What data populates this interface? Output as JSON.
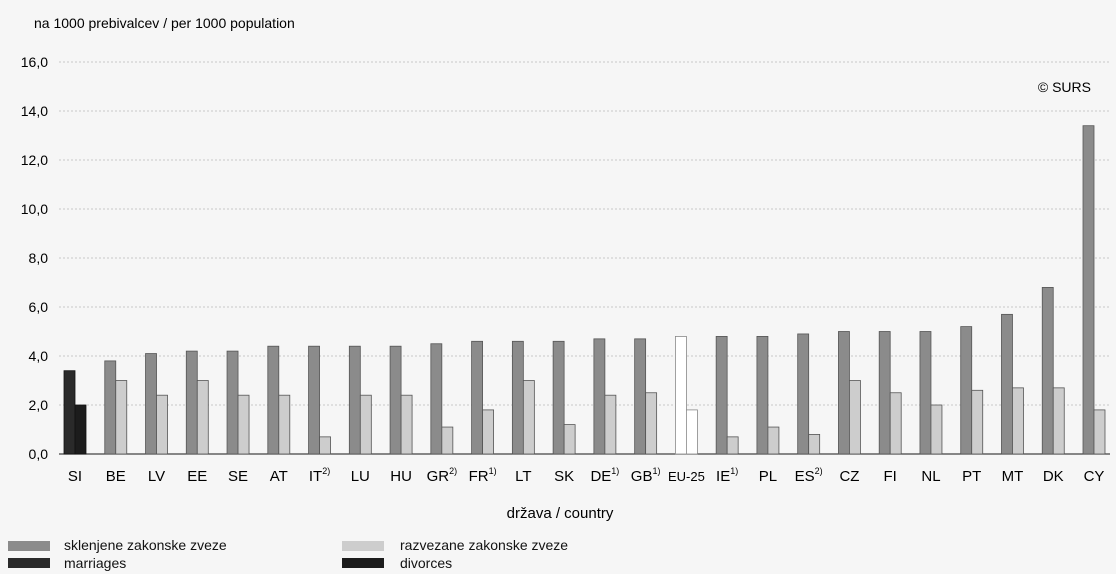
{
  "chart_data": {
    "type": "bar",
    "ylabel": "na 1000 prebivalcev / per 1000 population",
    "xlabel": "država / country",
    "credit": "© SURS",
    "ylim": [
      0,
      16
    ],
    "yticks": [
      "0,0",
      "2,0",
      "4,0",
      "6,0",
      "8,0",
      "10,0",
      "12,0",
      "14,0",
      "16,0"
    ],
    "grid": true,
    "categories": [
      {
        "base": "SI",
        "sup": ""
      },
      {
        "base": "BE",
        "sup": ""
      },
      {
        "base": "LV",
        "sup": ""
      },
      {
        "base": "EE",
        "sup": ""
      },
      {
        "base": "SE",
        "sup": ""
      },
      {
        "base": "AT",
        "sup": ""
      },
      {
        "base": "IT",
        "sup": "2)"
      },
      {
        "base": "LU",
        "sup": ""
      },
      {
        "base": "HU",
        "sup": ""
      },
      {
        "base": "GR",
        "sup": "2)"
      },
      {
        "base": "FR",
        "sup": "1)"
      },
      {
        "base": "LT",
        "sup": ""
      },
      {
        "base": "SK",
        "sup": ""
      },
      {
        "base": "DE",
        "sup": "1)"
      },
      {
        "base": "GB",
        "sup": "1)"
      },
      {
        "base": "EU-25",
        "sup": ""
      },
      {
        "base": "IE",
        "sup": "1)"
      },
      {
        "base": "PL",
        "sup": ""
      },
      {
        "base": "ES",
        "sup": "2)"
      },
      {
        "base": "CZ",
        "sup": ""
      },
      {
        "base": "FI",
        "sup": ""
      },
      {
        "base": "NL",
        "sup": ""
      },
      {
        "base": "PT",
        "sup": ""
      },
      {
        "base": "MT",
        "sup": ""
      },
      {
        "base": "DK",
        "sup": ""
      },
      {
        "base": "CY",
        "sup": ""
      }
    ],
    "series": [
      {
        "name": "sklenjene zakonske zveze",
        "values": [
          3.4,
          3.8,
          4.1,
          4.2,
          4.2,
          4.4,
          4.4,
          4.4,
          4.4,
          4.5,
          4.6,
          4.6,
          4.6,
          4.7,
          4.7,
          4.8,
          4.8,
          4.8,
          4.9,
          5.0,
          5.0,
          5.0,
          5.2,
          5.7,
          6.8,
          13.4
        ]
      },
      {
        "name": "razvezane zakonske zveze",
        "values": [
          2.0,
          3.0,
          2.4,
          3.0,
          2.4,
          2.4,
          0.7,
          2.4,
          2.4,
          1.1,
          1.8,
          3.0,
          1.2,
          2.4,
          2.5,
          1.8,
          0.7,
          1.1,
          0.8,
          3.0,
          2.5,
          2.0,
          2.6,
          2.7,
          2.7,
          1.8
        ]
      }
    ],
    "highlight": {
      "SI": "dark",
      "EU-25": "light"
    }
  },
  "legend": {
    "marriages_sl": "sklenjene zakonske zveze",
    "marriages_en": "marriages",
    "divorces_sl": "razvezane zakonske zveze",
    "divorces_en": "divorces"
  },
  "colors": {
    "marriage_bar": "#8b8b8b",
    "divorce_bar": "#cdcdcd",
    "si_marriage": "#2a2a2a",
    "si_divorce": "#1c1c1c",
    "eu_marriage": "#ffffff",
    "eu_divorce": "#ffffff",
    "grid": "#c8c8c8"
  }
}
